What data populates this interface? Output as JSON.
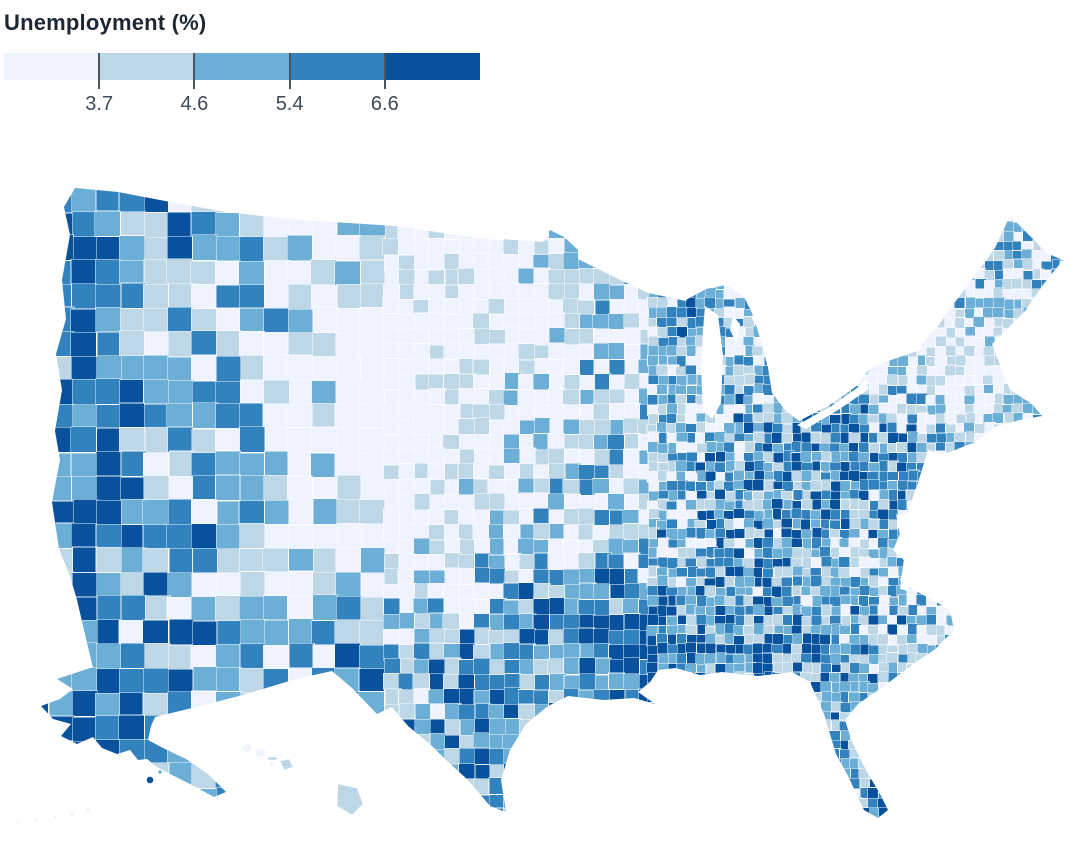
{
  "legend": {
    "title": "Unemployment (%)",
    "title_color": "#1c2733",
    "label_color": "#3d4a59",
    "tick_color": "#4a5560",
    "colors": [
      "#eff3ff",
      "#bdd7e7",
      "#6baed6",
      "#3182bd",
      "#08519c"
    ],
    "tick_labels": [
      "3.7",
      "4.6",
      "5.4",
      "6.6"
    ]
  },
  "chart_data": {
    "type": "choropleth",
    "title": "Unemployment (%)",
    "geography": "United States counties, Albers USA composite projection (lower 48 with Alaska and Hawaii insets at lower left)",
    "measure": "Unemployment rate (%)",
    "scale": "quantile, 5 classes, Blues sequential scheme",
    "quantile_breaks": [
      3.7,
      4.6,
      5.4,
      6.6
    ],
    "classes": [
      {
        "label": "< 3.7",
        "color": "#eff3ff"
      },
      {
        "label": "3.7 - 4.6",
        "color": "#bdd7e7"
      },
      {
        "label": "4.6 - 5.4",
        "color": "#6baed6"
      },
      {
        "label": "5.4 - 6.6",
        "color": "#3182bd"
      },
      {
        "label": ">= 6.6",
        "color": "#08519c"
      }
    ],
    "regional_pattern_notes": [
      "Pacific coast (WA/OR/CA) predominantly darkest two classes",
      "Great Plains (Dakotas, Nebraska, Kansas, Iowa, Minnesota) predominantly lightest class",
      "Deep South, Gulf coast, Appalachia and Pennsylvania predominantly darkest classes",
      "New England light; Maine mid-blue; Michigan and upper Midwest mixed",
      "Alaska inset nearly uniform darkest class; Hawaii islands light classes",
      "County borders thin white; water/background white"
    ],
    "intensity_grid": {
      "description": "Estimated relative shading intensity (0=lightest class, 1=darkest class) sampled on a 12x8 lattice spanning the 1080x690 map frame; bilinear interpolation of this lattice reproduces the regional pattern of the county mosaic.",
      "rows": [
        [
          0.85,
          0.7,
          0.55,
          0.35,
          0.12,
          0.15,
          0.35,
          0.5,
          0.35,
          0.3,
          0.5,
          0.45
        ],
        [
          0.85,
          0.7,
          0.55,
          0.35,
          0.12,
          0.15,
          0.35,
          0.5,
          0.35,
          0.3,
          0.5,
          0.48
        ],
        [
          0.8,
          0.7,
          0.5,
          0.28,
          0.1,
          0.15,
          0.35,
          0.5,
          0.4,
          0.25,
          0.18,
          0.25
        ],
        [
          0.8,
          0.7,
          0.48,
          0.25,
          0.1,
          0.2,
          0.35,
          0.45,
          0.7,
          0.7,
          0.42,
          0.35
        ],
        [
          0.75,
          0.65,
          0.5,
          0.33,
          0.15,
          0.3,
          0.5,
          0.55,
          0.55,
          0.42,
          0.3,
          0.3
        ],
        [
          0.7,
          0.6,
          0.55,
          0.48,
          0.55,
          0.6,
          0.75,
          0.7,
          0.62,
          0.55,
          0.45,
          0.45
        ],
        [
          0.85,
          0.85,
          0.55,
          0.4,
          0.6,
          0.65,
          0.7,
          0.62,
          0.55,
          0.55,
          0.5,
          0.5
        ],
        [
          0.85,
          0.85,
          0.5,
          0.4,
          0.6,
          0.65,
          0.62,
          0.6,
          0.55,
          0.6,
          0.55,
          0.55
        ]
      ]
    }
  }
}
